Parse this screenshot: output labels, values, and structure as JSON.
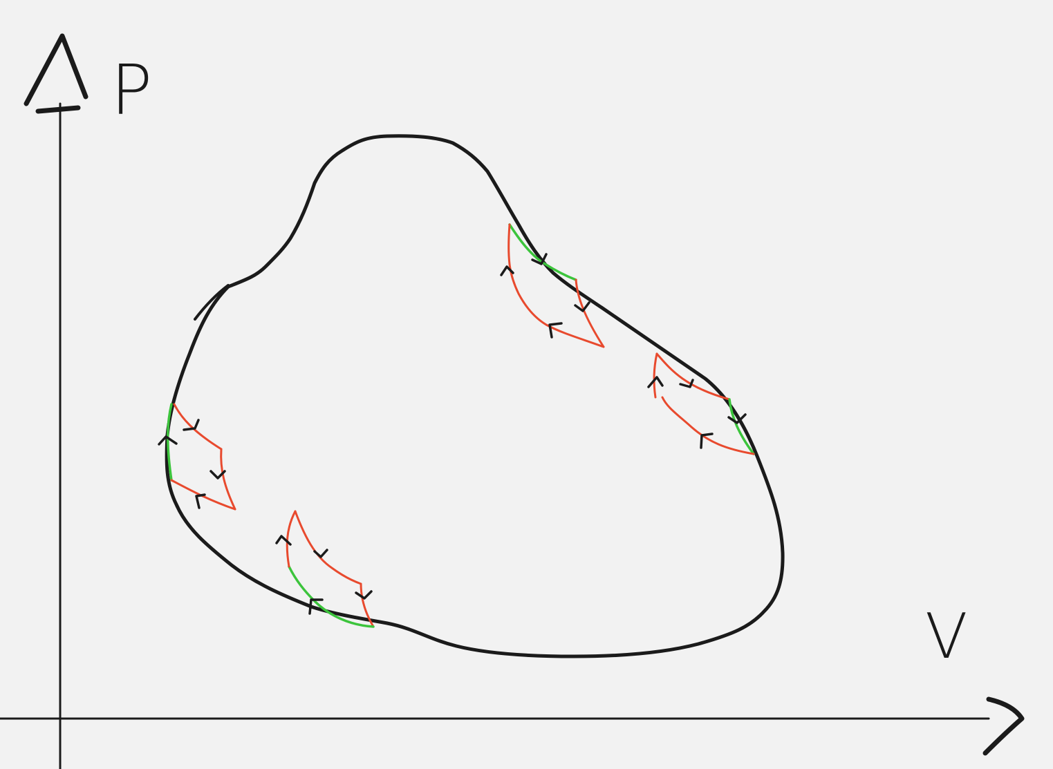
{
  "axes": {
    "y_label": "P",
    "x_label": "V"
  }
}
